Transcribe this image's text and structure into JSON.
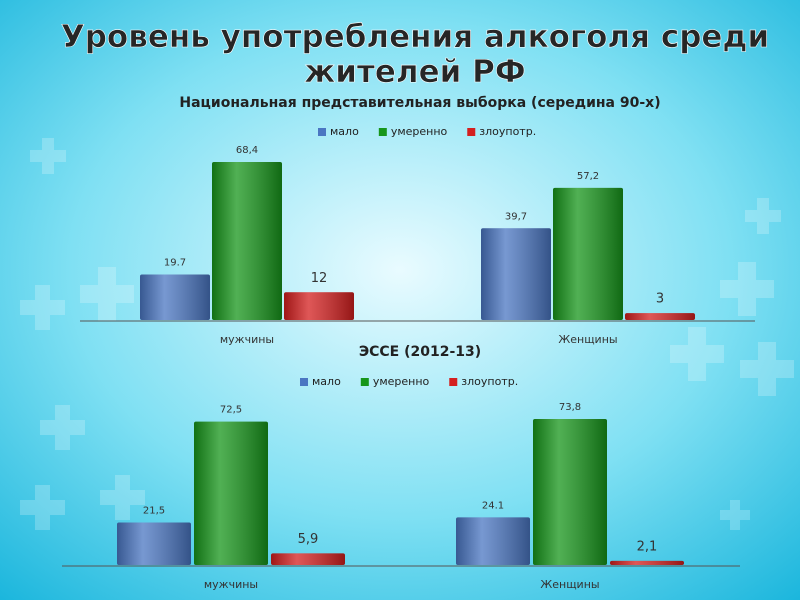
{
  "title": "Уровень употребления алкоголя среди жителей РФ",
  "chart_data": [
    {
      "type": "bar",
      "title": "Национальная представительная выборка (середина 90-х)",
      "categories": [
        "мужчины",
        "Женщины"
      ],
      "series": [
        {
          "name": "мало",
          "color": "#4a76c2",
          "values": [
            19.7,
            39.7
          ],
          "value_labels": [
            "19.7",
            "39,7"
          ]
        },
        {
          "name": "умеренно",
          "color": "#17961b",
          "values": [
            68.4,
            57.2
          ],
          "value_labels": [
            "68,4",
            "57,2"
          ]
        },
        {
          "name": "злоупотр.",
          "color": "#d41f1f",
          "values": [
            12,
            3
          ],
          "value_labels": [
            "12",
            "3"
          ]
        }
      ]
    },
    {
      "type": "bar",
      "title": "ЭССЕ (2012-13)",
      "categories": [
        "мужчины",
        "Женщины"
      ],
      "series": [
        {
          "name": "мало",
          "color": "#4a76c2",
          "values": [
            21.5,
            24.1
          ],
          "value_labels": [
            "21,5",
            "24.1"
          ]
        },
        {
          "name": "умеренно",
          "color": "#17961b",
          "values": [
            72.5,
            73.8
          ],
          "value_labels": [
            "72,5",
            "73,8"
          ]
        },
        {
          "name": "злоупотр.",
          "color": "#d41f1f",
          "values": [
            5.9,
            2.1
          ],
          "value_labels": [
            "5,9",
            "2,1"
          ]
        }
      ]
    }
  ]
}
